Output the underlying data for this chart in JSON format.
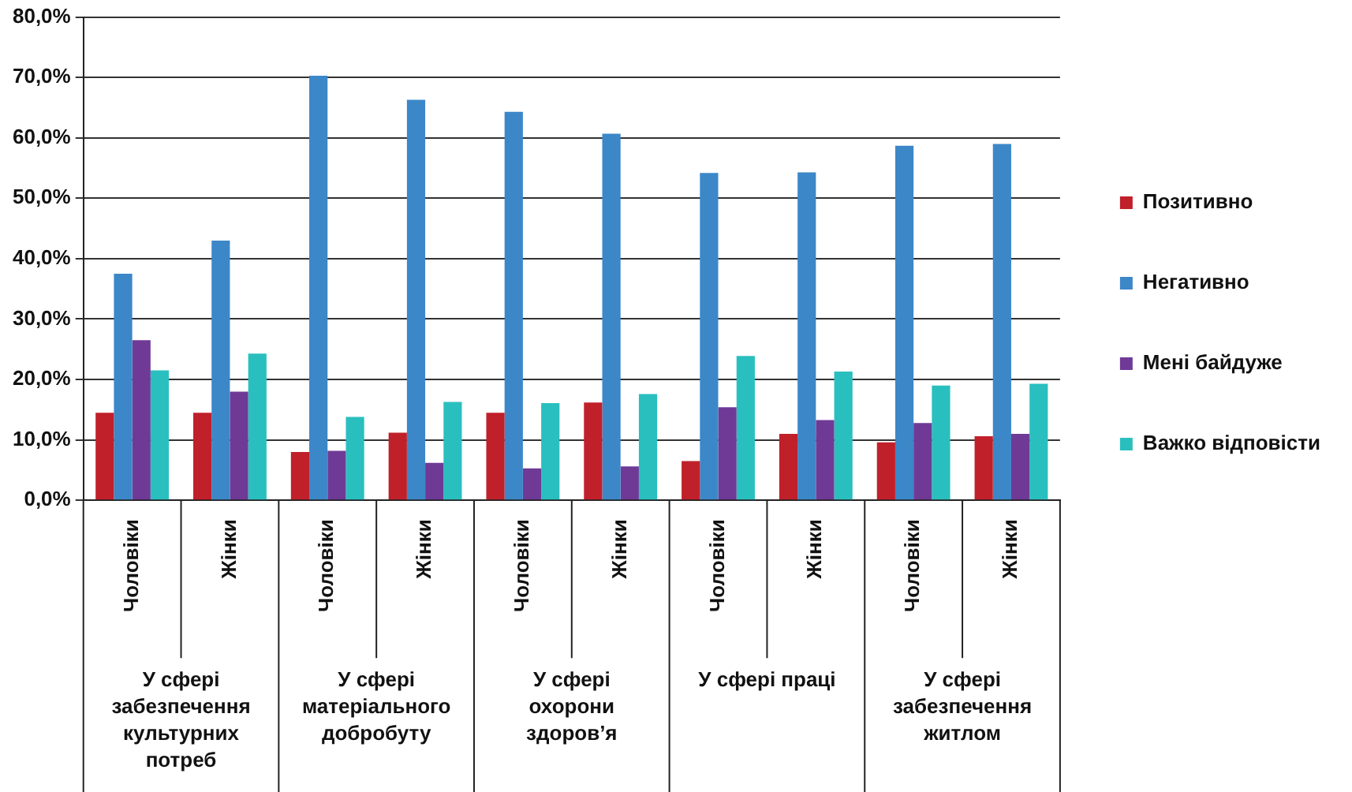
{
  "chart_data": {
    "type": "bar",
    "categories": [
      "Чоловіки",
      "Жінки",
      "Чоловіки",
      "Жінки",
      "Чоловіки",
      "Жінки",
      "Чоловіки",
      "Жінки",
      "Чоловіки",
      "Жінки"
    ],
    "series": [
      {
        "name": "Позитивно",
        "color": "#c0202a",
        "values": [
          14.5,
          14.5,
          8.0,
          11.2,
          14.5,
          16.2,
          6.5,
          11.0,
          9.6,
          10.6
        ]
      },
      {
        "name": "Негативно",
        "color": "#3c87c8",
        "values": [
          37.5,
          43.0,
          70.3,
          66.3,
          64.3,
          60.7,
          54.2,
          54.3,
          58.7,
          59.0
        ]
      },
      {
        "name": "Мені байдуже",
        "color": "#6f3a96",
        "values": [
          26.5,
          18.0,
          8.2,
          6.2,
          5.3,
          5.6,
          15.4,
          13.3,
          12.8,
          11.0
        ]
      },
      {
        "name": "Важко відповісти",
        "color": "#2abfbf",
        "values": [
          21.5,
          24.3,
          13.8,
          16.3,
          16.1,
          17.6,
          23.9,
          21.3,
          19.0,
          19.3
        ]
      }
    ],
    "ylim": [
      0,
      80
    ],
    "yticks": [
      {
        "value": 0,
        "label": "0,0%"
      },
      {
        "value": 10,
        "label": "10,0%"
      },
      {
        "value": 20,
        "label": "20,0%"
      },
      {
        "value": 30,
        "label": "30,0%"
      },
      {
        "value": 40,
        "label": "40,0%"
      },
      {
        "value": 50,
        "label": "50,0%"
      },
      {
        "value": 60,
        "label": "60,0%"
      },
      {
        "value": 70,
        "label": "70,0%"
      },
      {
        "value": 80,
        "label": "80,0%"
      }
    ],
    "grid": "y",
    "legend": "right",
    "annotations": [
      "У сфері забезпечення культурних потреб",
      "У сфері матеріального добробуту",
      "У сфері охорони здоров’я",
      "У сфері праці",
      "У сфері забезпечення житлом"
    ]
  }
}
